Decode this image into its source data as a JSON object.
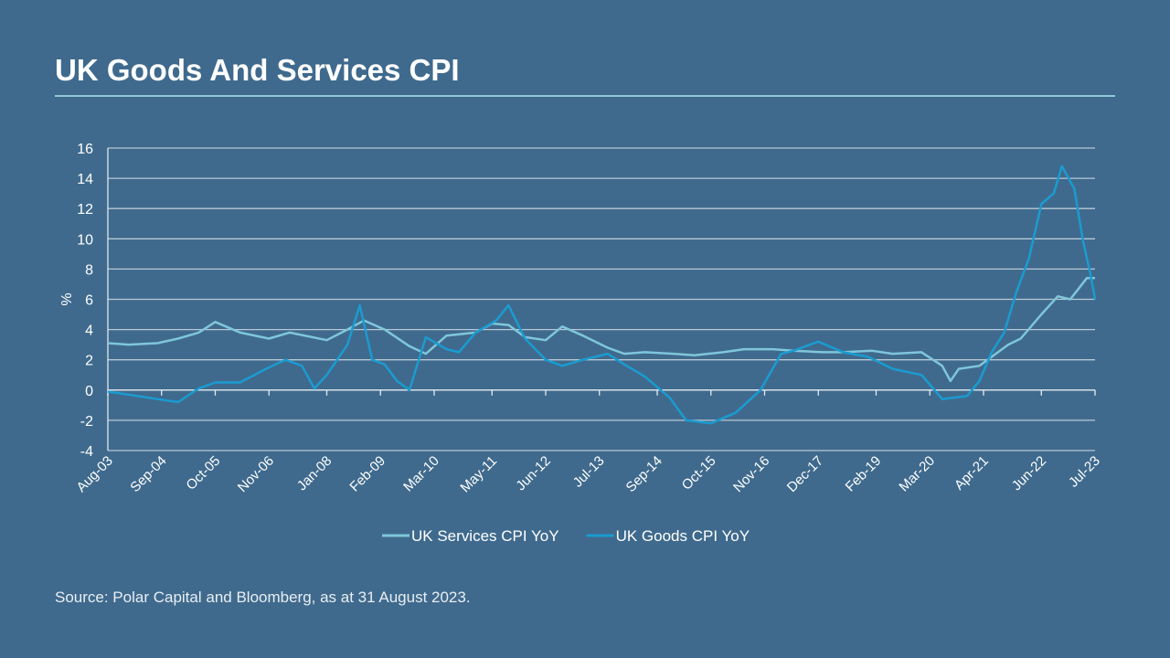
{
  "title": "UK Goods And Services CPI",
  "source": "Source: Polar Capital and Bloomberg, as at 31 August 2023.",
  "chart_data": {
    "type": "line",
    "title": "",
    "xlabel": "",
    "ylabel": "%",
    "ylim": [
      -4,
      16
    ],
    "yticks": [
      -4,
      -2,
      0,
      2,
      4,
      6,
      8,
      10,
      12,
      14,
      16
    ],
    "xlim": [
      "2003-08",
      "2023-07"
    ],
    "xticks": [
      {
        "date": "2003-08",
        "label": "Aug-03"
      },
      {
        "date": "2004-09",
        "label": "Sep-04"
      },
      {
        "date": "2005-10",
        "label": "Oct-05"
      },
      {
        "date": "2006-11",
        "label": "Nov-06"
      },
      {
        "date": "2008-01",
        "label": "Jan-08"
      },
      {
        "date": "2009-02",
        "label": "Feb-09"
      },
      {
        "date": "2010-03",
        "label": "Mar-10"
      },
      {
        "date": "2011-05",
        "label": "May-11"
      },
      {
        "date": "2012-06",
        "label": "Jun-12"
      },
      {
        "date": "2013-07",
        "label": "Jul-13"
      },
      {
        "date": "2014-09",
        "label": "Sep-14"
      },
      {
        "date": "2015-10",
        "label": "Oct-15"
      },
      {
        "date": "2016-11",
        "label": "Nov-16"
      },
      {
        "date": "2017-12",
        "label": "Dec-17"
      },
      {
        "date": "2019-02",
        "label": "Feb-19"
      },
      {
        "date": "2020-03",
        "label": "Mar-20"
      },
      {
        "date": "2021-04",
        "label": "Apr-21"
      },
      {
        "date": "2022-06",
        "label": "Jun-22"
      },
      {
        "date": "2023-07",
        "label": "Jul-23"
      }
    ],
    "grid": true,
    "legend": "bottom",
    "series": [
      {
        "name": "UK Services CPI YoY",
        "color": "#7fc6da",
        "points": [
          [
            "2003-08",
            3.1
          ],
          [
            "2004-01",
            3.0
          ],
          [
            "2004-08",
            3.1
          ],
          [
            "2005-01",
            3.4
          ],
          [
            "2005-06",
            3.8
          ],
          [
            "2005-10",
            4.5
          ],
          [
            "2006-04",
            3.8
          ],
          [
            "2006-11",
            3.4
          ],
          [
            "2007-04",
            3.8
          ],
          [
            "2008-01",
            3.3
          ],
          [
            "2008-06",
            4.0
          ],
          [
            "2008-10",
            4.6
          ],
          [
            "2009-03",
            4.0
          ],
          [
            "2009-09",
            2.9
          ],
          [
            "2010-01",
            2.4
          ],
          [
            "2010-06",
            3.6
          ],
          [
            "2011-01",
            3.8
          ],
          [
            "2011-05",
            4.4
          ],
          [
            "2011-09",
            4.3
          ],
          [
            "2012-01",
            3.5
          ],
          [
            "2012-06",
            3.3
          ],
          [
            "2012-10",
            4.2
          ],
          [
            "2013-03",
            3.6
          ],
          [
            "2013-09",
            2.8
          ],
          [
            "2014-01",
            2.4
          ],
          [
            "2014-06",
            2.5
          ],
          [
            "2015-01",
            2.4
          ],
          [
            "2015-06",
            2.3
          ],
          [
            "2016-01",
            2.5
          ],
          [
            "2016-06",
            2.7
          ],
          [
            "2017-01",
            2.7
          ],
          [
            "2017-06",
            2.6
          ],
          [
            "2018-01",
            2.5
          ],
          [
            "2018-06",
            2.5
          ],
          [
            "2019-01",
            2.6
          ],
          [
            "2019-06",
            2.4
          ],
          [
            "2020-01",
            2.5
          ],
          [
            "2020-06",
            1.6
          ],
          [
            "2020-08",
            0.6
          ],
          [
            "2020-10",
            1.4
          ],
          [
            "2021-03",
            1.6
          ],
          [
            "2021-06",
            2.2
          ],
          [
            "2021-10",
            3.0
          ],
          [
            "2022-01",
            3.4
          ],
          [
            "2022-06",
            5.0
          ],
          [
            "2022-10",
            6.2
          ],
          [
            "2023-01",
            6.0
          ],
          [
            "2023-05",
            7.4
          ],
          [
            "2023-07",
            7.4
          ]
        ]
      },
      {
        "name": "UK Goods CPI YoY",
        "color": "#1b9bd0",
        "points": [
          [
            "2003-08",
            -0.1
          ],
          [
            "2004-01",
            -0.3
          ],
          [
            "2004-08",
            -0.6
          ],
          [
            "2005-01",
            -0.8
          ],
          [
            "2005-06",
            0.1
          ],
          [
            "2005-10",
            0.5
          ],
          [
            "2006-04",
            0.5
          ],
          [
            "2006-11",
            1.5
          ],
          [
            "2007-03",
            2.0
          ],
          [
            "2007-07",
            1.6
          ],
          [
            "2007-10",
            0.1
          ],
          [
            "2008-01",
            1.0
          ],
          [
            "2008-06",
            3.0
          ],
          [
            "2008-09",
            5.6
          ],
          [
            "2008-12",
            2.0
          ],
          [
            "2009-03",
            1.7
          ],
          [
            "2009-06",
            0.6
          ],
          [
            "2009-09",
            0.0
          ],
          [
            "2010-01",
            3.5
          ],
          [
            "2010-06",
            2.7
          ],
          [
            "2010-09",
            2.5
          ],
          [
            "2011-01",
            3.8
          ],
          [
            "2011-06",
            4.6
          ],
          [
            "2011-09",
            5.6
          ],
          [
            "2012-01",
            3.4
          ],
          [
            "2012-06",
            2.0
          ],
          [
            "2012-10",
            1.6
          ],
          [
            "2013-03",
            2.0
          ],
          [
            "2013-09",
            2.4
          ],
          [
            "2014-01",
            1.7
          ],
          [
            "2014-06",
            0.9
          ],
          [
            "2014-12",
            -0.5
          ],
          [
            "2015-04",
            -2.0
          ],
          [
            "2015-10",
            -2.2
          ],
          [
            "2016-04",
            -1.5
          ],
          [
            "2016-10",
            0.0
          ],
          [
            "2017-03",
            2.4
          ],
          [
            "2017-06",
            2.6
          ],
          [
            "2017-12",
            3.2
          ],
          [
            "2018-06",
            2.5
          ],
          [
            "2018-12",
            2.2
          ],
          [
            "2019-06",
            1.4
          ],
          [
            "2020-01",
            1.0
          ],
          [
            "2020-06",
            -0.6
          ],
          [
            "2020-12",
            -0.4
          ],
          [
            "2021-03",
            0.6
          ],
          [
            "2021-06",
            2.5
          ],
          [
            "2021-09",
            3.8
          ],
          [
            "2021-12",
            6.5
          ],
          [
            "2022-03",
            8.7
          ],
          [
            "2022-06",
            12.3
          ],
          [
            "2022-09",
            13.0
          ],
          [
            "2022-11",
            14.8
          ],
          [
            "2023-02",
            13.3
          ],
          [
            "2023-04",
            10.0
          ],
          [
            "2023-06",
            7.5
          ],
          [
            "2023-07",
            6.0
          ]
        ]
      }
    ]
  }
}
